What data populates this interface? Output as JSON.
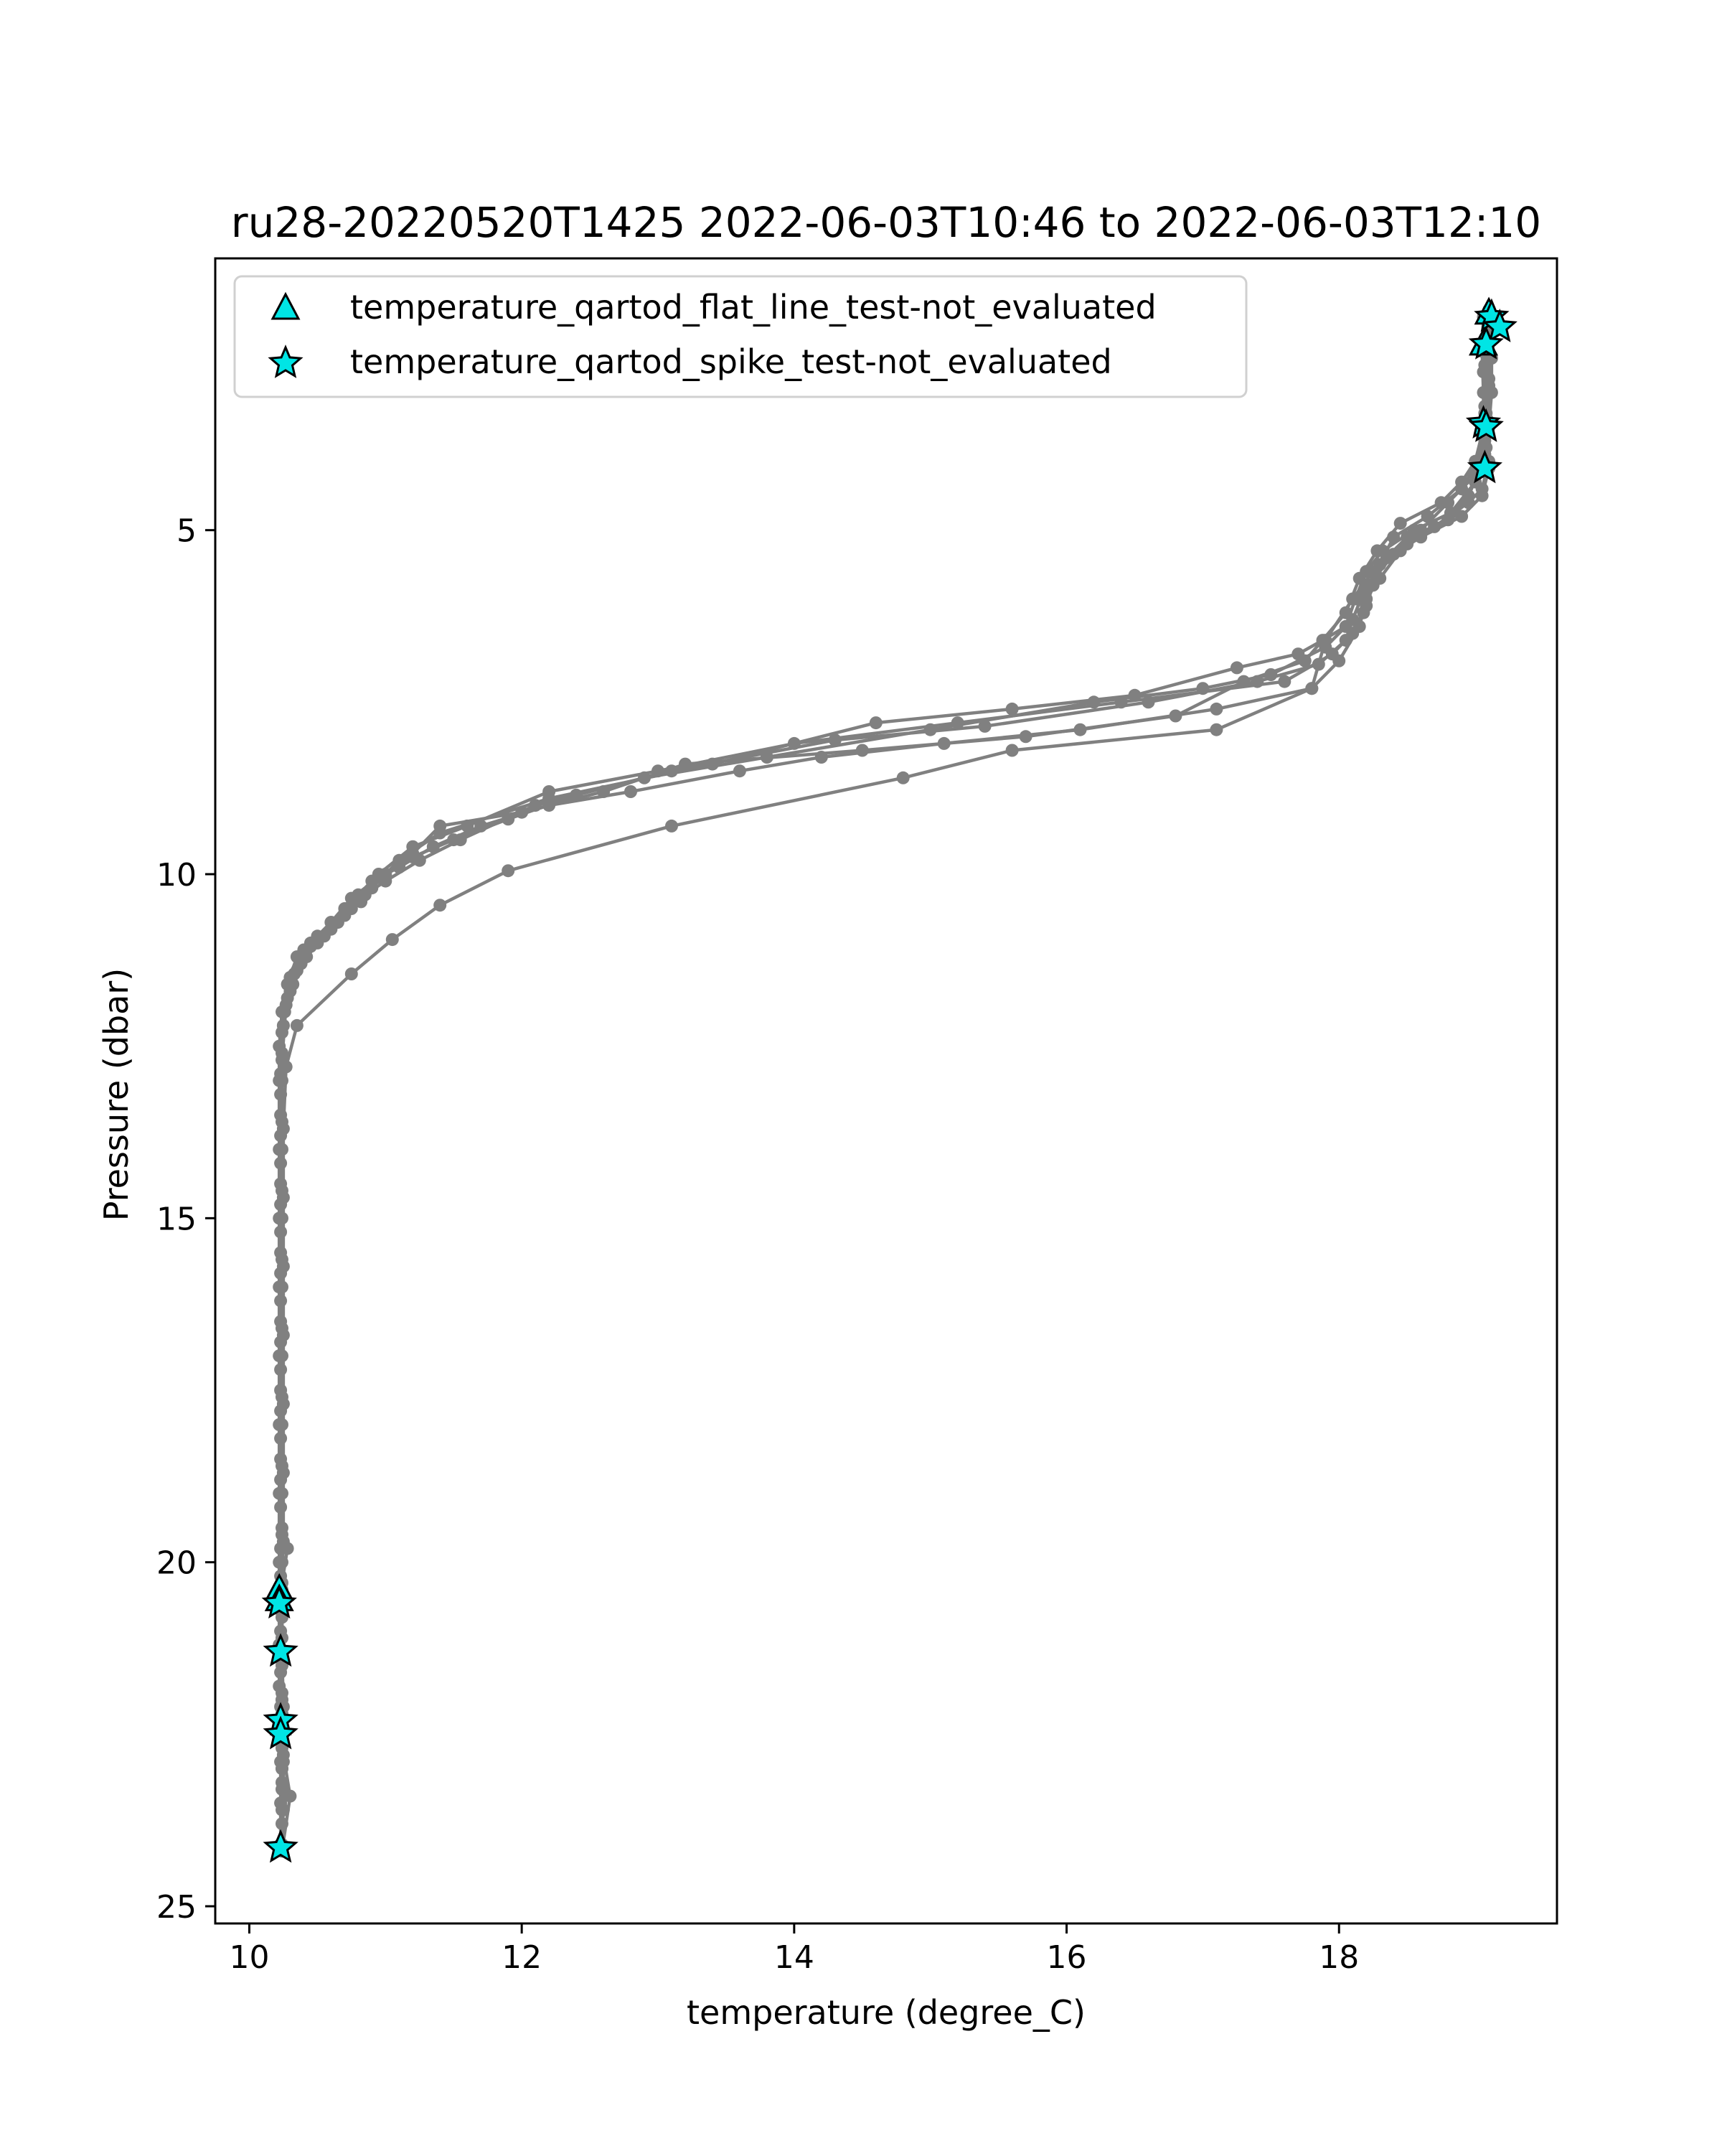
{
  "chart_data": {
    "type": "line",
    "title": "ru28-20220520T1425 2022-06-03T10:46 to 2022-06-03T12:10",
    "xlabel": "temperature (degree_C)",
    "ylabel": "Pressure (dbar)",
    "xlim": [
      9.75,
      19.6
    ],
    "ylim": [
      25.25,
      1.05
    ],
    "y_inverted": true,
    "xticks": [
      10,
      12,
      14,
      16,
      18
    ],
    "yticks": [
      5,
      10,
      15,
      20,
      25
    ],
    "xtick_labels": [
      "10",
      "12",
      "14",
      "16",
      "18"
    ],
    "ytick_labels": [
      "5",
      "10",
      "15",
      "20",
      "25"
    ],
    "grid": false,
    "legend": {
      "placement": "top-left",
      "entries": [
        {
          "label": "temperature_qartod_flat_line_test-not_evaluated",
          "marker": "triangle",
          "color": "#00e5e5"
        },
        {
          "label": "temperature_qartod_spike_test-not_evaluated",
          "marker": "star",
          "color": "#00e5e5"
        }
      ]
    },
    "profile_color": "#808080",
    "profiles": [
      {
        "points": [
          [
            19.12,
            1.9
          ],
          [
            19.1,
            2.2
          ],
          [
            19.1,
            2.8
          ],
          [
            19.08,
            3.3
          ],
          [
            19.07,
            3.9
          ],
          [
            19.0,
            4.3
          ],
          [
            18.82,
            4.75
          ],
          [
            18.55,
            5.0
          ],
          [
            18.32,
            5.3
          ],
          [
            18.2,
            5.6
          ],
          [
            18.12,
            6.0
          ],
          [
            18.05,
            6.4
          ],
          [
            17.88,
            6.6
          ],
          [
            17.7,
            6.8
          ],
          [
            17.25,
            7.0
          ],
          [
            16.5,
            7.4
          ],
          [
            15.6,
            7.6
          ],
          [
            14.6,
            7.8
          ],
          [
            13.4,
            8.4
          ],
          [
            12.2,
            8.9
          ],
          [
            11.4,
            9.4
          ],
          [
            11.1,
            9.8
          ],
          [
            10.9,
            10.2
          ],
          [
            10.75,
            10.5
          ],
          [
            10.6,
            10.7
          ],
          [
            10.45,
            11.0
          ],
          [
            10.35,
            11.2
          ],
          [
            10.28,
            11.6
          ],
          [
            10.24,
            12.0
          ],
          [
            10.22,
            12.5
          ],
          [
            10.22,
            13.0
          ],
          [
            10.22,
            14.0
          ],
          [
            10.22,
            15.0
          ],
          [
            10.22,
            16.0
          ],
          [
            10.22,
            17.0
          ],
          [
            10.22,
            18.0
          ],
          [
            10.22,
            19.0
          ],
          [
            10.22,
            20.0
          ],
          [
            10.22,
            20.6
          ],
          [
            10.22,
            21.2
          ],
          [
            10.22,
            21.8
          ],
          [
            10.23,
            22.3
          ],
          [
            10.23,
            22.9
          ],
          [
            10.23,
            23.5
          ],
          [
            10.23,
            24.1
          ]
        ]
      },
      {
        "points": [
          [
            19.08,
            2.2
          ],
          [
            19.12,
            2.5
          ],
          [
            19.12,
            3.0
          ],
          [
            19.1,
            3.5
          ],
          [
            19.1,
            4.0
          ],
          [
            19.05,
            4.4
          ],
          [
            18.95,
            4.6
          ],
          [
            18.7,
            4.95
          ],
          [
            18.5,
            5.1
          ],
          [
            18.35,
            5.4
          ],
          [
            18.25,
            5.8
          ],
          [
            18.2,
            6.1
          ],
          [
            18.1,
            6.5
          ],
          [
            17.95,
            6.8
          ],
          [
            17.6,
            7.2
          ],
          [
            16.4,
            7.5
          ],
          [
            15.2,
            7.8
          ],
          [
            14.0,
            8.1
          ],
          [
            13.0,
            8.5
          ],
          [
            12.2,
            8.8
          ],
          [
            11.6,
            9.3
          ],
          [
            11.2,
            9.6
          ],
          [
            10.95,
            10.0
          ],
          [
            10.82,
            10.4
          ],
          [
            10.6,
            10.8
          ],
          [
            10.4,
            11.1
          ],
          [
            10.3,
            11.5
          ],
          [
            10.26,
            12.0
          ],
          [
            10.24,
            12.6
          ],
          [
            10.23,
            13.5
          ],
          [
            10.23,
            14.5
          ],
          [
            10.23,
            15.5
          ],
          [
            10.23,
            16.5
          ],
          [
            10.23,
            17.5
          ],
          [
            10.23,
            18.5
          ],
          [
            10.24,
            19.5
          ],
          [
            10.28,
            19.8
          ],
          [
            10.24,
            20.3
          ],
          [
            10.23,
            20.6
          ],
          [
            10.23,
            21.3
          ],
          [
            10.24,
            22.0
          ],
          [
            10.24,
            22.4
          ],
          [
            10.25,
            22.8
          ],
          [
            10.3,
            23.4
          ],
          [
            10.24,
            24.2
          ]
        ]
      },
      {
        "points": [
          [
            19.1,
            1.8
          ],
          [
            19.08,
            2.3
          ],
          [
            19.1,
            2.9
          ],
          [
            19.09,
            3.4
          ],
          [
            19.08,
            3.8
          ],
          [
            18.9,
            4.4
          ],
          [
            18.65,
            4.8
          ],
          [
            18.4,
            5.1
          ],
          [
            18.3,
            5.5
          ],
          [
            18.18,
            5.9
          ],
          [
            18.1,
            6.3
          ],
          [
            17.9,
            6.7
          ],
          [
            17.5,
            7.1
          ],
          [
            17.0,
            7.3
          ],
          [
            16.2,
            7.5
          ],
          [
            15.0,
            7.9
          ],
          [
            13.8,
            8.3
          ],
          [
            12.9,
            8.6
          ],
          [
            12.1,
            9.0
          ],
          [
            11.55,
            9.5
          ],
          [
            11.25,
            9.8
          ],
          [
            11.0,
            10.1
          ],
          [
            10.85,
            10.3
          ],
          [
            10.7,
            10.6
          ],
          [
            10.5,
            10.9
          ],
          [
            10.38,
            11.3
          ],
          [
            10.3,
            11.7
          ],
          [
            10.25,
            12.2
          ],
          [
            10.23,
            12.9
          ],
          [
            10.23,
            13.8
          ],
          [
            10.23,
            14.8
          ],
          [
            10.23,
            15.8
          ],
          [
            10.23,
            16.8
          ],
          [
            10.23,
            17.8
          ],
          [
            10.23,
            18.8
          ],
          [
            10.23,
            19.8
          ],
          [
            10.22,
            20.5
          ],
          [
            10.23,
            21.0
          ],
          [
            10.23,
            21.6
          ],
          [
            10.24,
            22.2
          ],
          [
            10.24,
            22.6
          ],
          [
            10.24,
            23.2
          ],
          [
            10.24,
            23.8
          ],
          [
            10.23,
            24.1
          ]
        ]
      },
      {
        "points": [
          [
            19.1,
            2.1
          ],
          [
            19.07,
            2.6
          ],
          [
            19.07,
            3.2
          ],
          [
            19.05,
            3.6
          ],
          [
            19.0,
            4.0
          ],
          [
            18.9,
            4.3
          ],
          [
            18.75,
            4.6
          ],
          [
            18.45,
            4.9
          ],
          [
            18.28,
            5.3
          ],
          [
            18.15,
            5.7
          ],
          [
            18.05,
            6.2
          ],
          [
            17.75,
            6.9
          ],
          [
            17.3,
            7.2
          ],
          [
            16.8,
            7.7
          ],
          [
            15.7,
            8.0
          ],
          [
            14.5,
            8.2
          ],
          [
            13.2,
            8.4
          ],
          [
            12.6,
            8.8
          ],
          [
            12.0,
            9.1
          ],
          [
            11.4,
            9.3
          ],
          [
            11.2,
            9.7
          ],
          [
            11.0,
            10.0
          ],
          [
            10.8,
            10.3
          ],
          [
            10.65,
            10.7
          ],
          [
            10.5,
            11.0
          ],
          [
            10.35,
            11.4
          ],
          [
            10.28,
            11.8
          ],
          [
            10.24,
            12.3
          ],
          [
            10.23,
            13.2
          ],
          [
            10.23,
            14.2
          ],
          [
            10.23,
            15.2
          ],
          [
            10.23,
            16.2
          ],
          [
            10.23,
            17.2
          ],
          [
            10.23,
            18.2
          ],
          [
            10.23,
            19.2
          ],
          [
            10.23,
            20.2
          ],
          [
            10.23,
            20.7
          ],
          [
            10.23,
            21.4
          ],
          [
            10.23,
            22.1
          ],
          [
            10.24,
            22.5
          ],
          [
            10.24,
            23.0
          ]
        ]
      },
      {
        "points": [
          [
            19.06,
            1.9
          ],
          [
            19.05,
            2.4
          ],
          [
            19.06,
            3.0
          ],
          [
            19.06,
            3.5
          ],
          [
            19.0,
            4.2
          ],
          [
            18.8,
            4.6
          ],
          [
            18.6,
            5.0
          ],
          [
            18.45,
            5.3
          ],
          [
            18.3,
            5.7
          ],
          [
            18.2,
            6.0
          ],
          [
            18.15,
            6.4
          ],
          [
            18.0,
            6.9
          ],
          [
            17.8,
            7.3
          ],
          [
            17.1,
            7.6
          ],
          [
            16.1,
            7.9
          ],
          [
            15.1,
            8.1
          ],
          [
            14.2,
            8.3
          ],
          [
            13.6,
            8.5
          ],
          [
            12.8,
            8.8
          ],
          [
            12.2,
            9.0
          ],
          [
            11.7,
            9.3
          ],
          [
            11.35,
            9.6
          ],
          [
            11.1,
            9.9
          ],
          [
            10.9,
            10.1
          ],
          [
            10.7,
            10.5
          ],
          [
            10.55,
            10.9
          ],
          [
            10.42,
            11.2
          ],
          [
            10.32,
            11.6
          ],
          [
            10.25,
            12.2
          ],
          [
            10.24,
            13.0
          ],
          [
            10.24,
            14.0
          ],
          [
            10.24,
            15.0
          ],
          [
            10.24,
            16.0
          ],
          [
            10.24,
            17.0
          ],
          [
            10.24,
            18.0
          ],
          [
            10.24,
            19.0
          ],
          [
            10.24,
            20.0
          ],
          [
            10.24,
            20.8
          ],
          [
            10.24,
            21.5
          ],
          [
            10.24,
            22.0
          ],
          [
            10.24,
            22.5
          ],
          [
            10.24,
            23.0
          ],
          [
            10.24,
            23.6
          ],
          [
            10.24,
            24.1
          ]
        ]
      },
      {
        "points": [
          [
            19.09,
            2.2
          ],
          [
            19.06,
            2.7
          ],
          [
            19.07,
            3.3
          ],
          [
            19.07,
            3.7
          ],
          [
            19.04,
            4.1
          ],
          [
            18.95,
            4.5
          ],
          [
            18.8,
            4.85
          ],
          [
            18.6,
            5.1
          ],
          [
            18.4,
            5.35
          ],
          [
            18.22,
            5.8
          ],
          [
            18.18,
            6.2
          ],
          [
            18.05,
            6.6
          ],
          [
            17.85,
            6.95
          ],
          [
            17.4,
            7.2
          ],
          [
            16.6,
            7.5
          ],
          [
            15.4,
            7.85
          ],
          [
            14.3,
            8.05
          ],
          [
            13.1,
            8.5
          ],
          [
            12.4,
            8.85
          ],
          [
            11.9,
            9.2
          ],
          [
            11.5,
            9.5
          ],
          [
            11.2,
            9.75
          ],
          [
            10.95,
            10.05
          ],
          [
            10.75,
            10.35
          ],
          [
            10.6,
            10.7
          ],
          [
            10.45,
            11.05
          ],
          [
            10.33,
            11.45
          ],
          [
            10.27,
            11.9
          ],
          [
            10.24,
            12.7
          ],
          [
            10.24,
            13.6
          ],
          [
            10.24,
            14.6
          ],
          [
            10.24,
            15.6
          ],
          [
            10.24,
            16.6
          ],
          [
            10.24,
            17.6
          ],
          [
            10.24,
            18.6
          ],
          [
            10.24,
            19.6
          ],
          [
            10.24,
            20.4
          ],
          [
            10.24,
            21.1
          ],
          [
            10.24,
            21.9
          ],
          [
            10.24,
            22.7
          ],
          [
            10.24,
            23.3
          ]
        ]
      },
      {
        "points": [
          [
            19.08,
            2.6
          ],
          [
            19.1,
            3.0
          ],
          [
            19.1,
            3.5
          ],
          [
            19.1,
            4.1
          ],
          [
            19.05,
            4.5
          ],
          [
            18.9,
            4.8
          ],
          [
            18.5,
            5.2
          ],
          [
            18.25,
            5.6
          ],
          [
            18.1,
            6.0
          ],
          [
            17.9,
            6.6
          ],
          [
            17.8,
            7.3
          ],
          [
            17.1,
            7.9
          ],
          [
            15.6,
            8.2
          ],
          [
            14.8,
            8.6
          ],
          [
            13.1,
            9.3
          ],
          [
            11.9,
            9.95
          ],
          [
            11.4,
            10.45
          ],
          [
            11.05,
            10.95
          ],
          [
            10.75,
            11.45
          ],
          [
            10.35,
            12.2
          ],
          [
            10.27,
            12.8
          ],
          [
            10.25,
            13.7
          ],
          [
            10.25,
            14.7
          ],
          [
            10.25,
            15.7
          ],
          [
            10.25,
            16.7
          ],
          [
            10.25,
            17.7
          ],
          [
            10.25,
            18.7
          ],
          [
            10.25,
            19.7
          ],
          [
            10.24,
            20.5
          ],
          [
            10.24,
            21.3
          ],
          [
            10.25,
            22.1
          ],
          [
            10.25,
            22.9
          ],
          [
            10.25,
            23.6
          ],
          [
            10.24,
            24.1
          ]
        ]
      }
    ],
    "flat_line_markers": [
      [
        10.22,
        20.4
      ],
      [
        10.22,
        20.55
      ],
      [
        19.1,
        1.85
      ],
      [
        19.06,
        2.3
      ]
    ],
    "spike_markers": [
      [
        19.12,
        1.9
      ],
      [
        19.18,
        2.05
      ],
      [
        19.08,
        2.3
      ],
      [
        19.06,
        3.45
      ],
      [
        19.08,
        3.5
      ],
      [
        19.07,
        4.1
      ],
      [
        10.22,
        20.6
      ],
      [
        10.23,
        21.3
      ],
      [
        10.23,
        22.3
      ],
      [
        10.23,
        22.5
      ],
      [
        10.23,
        24.15
      ]
    ]
  }
}
